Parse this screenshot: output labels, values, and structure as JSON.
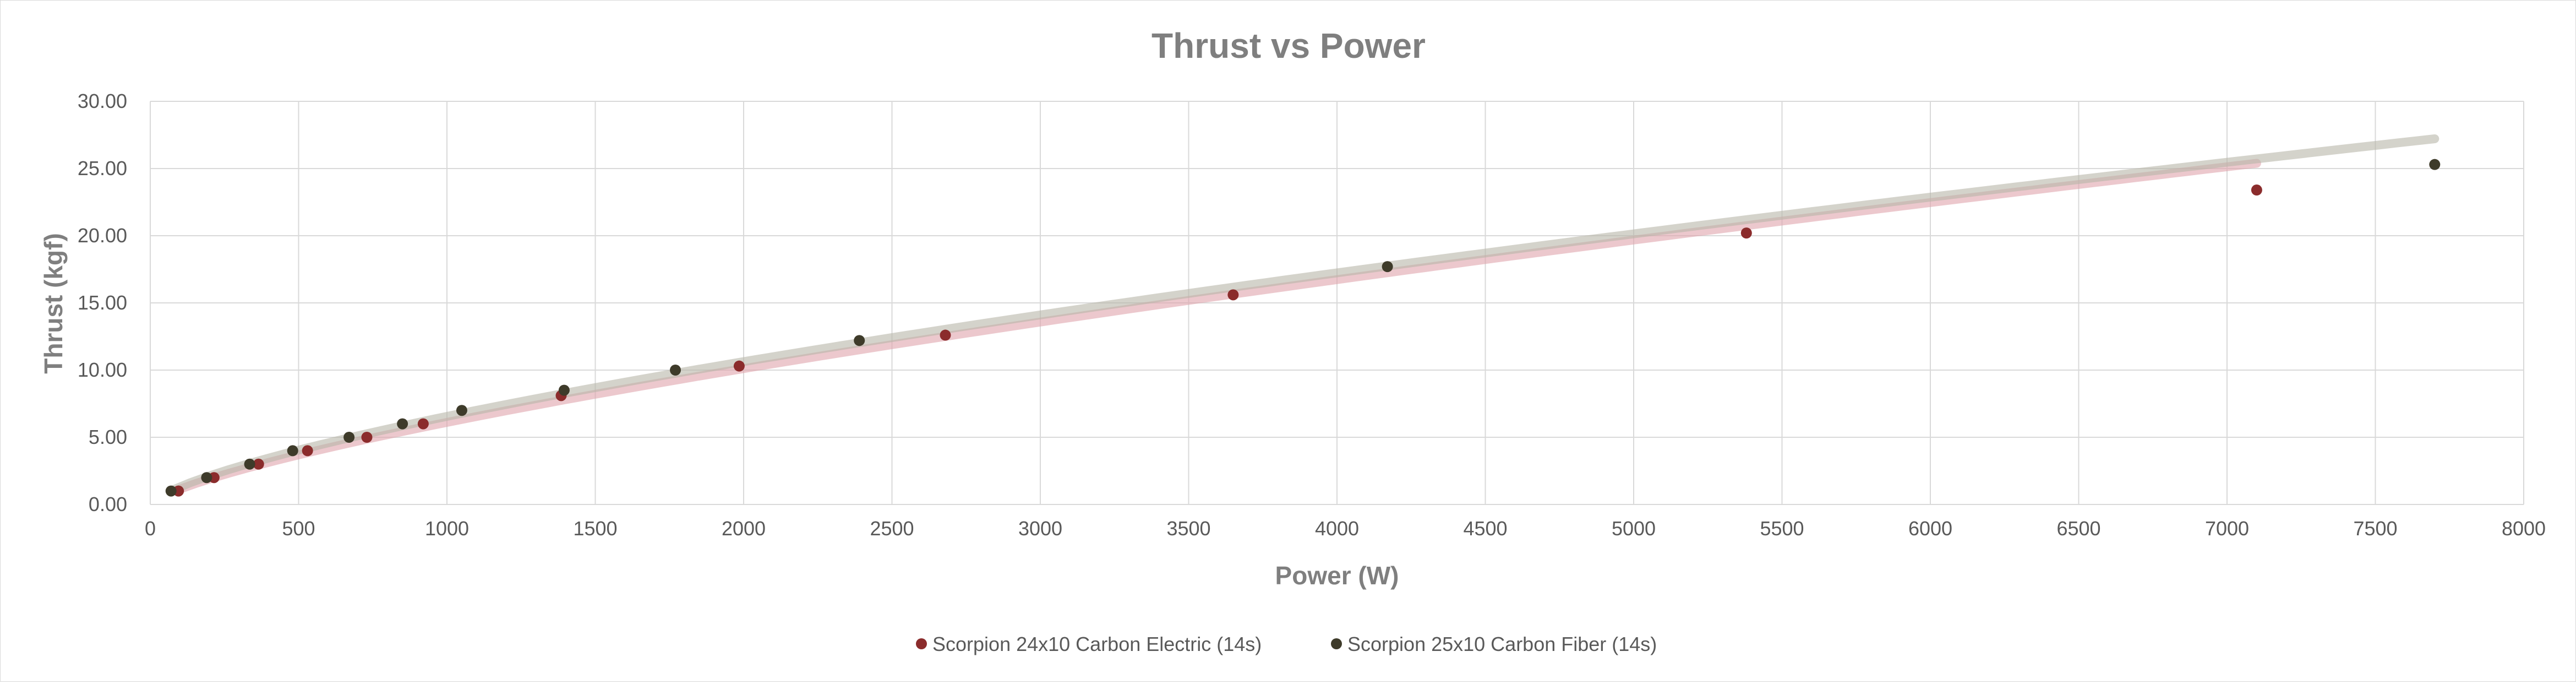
{
  "chart_data": {
    "type": "scatter",
    "title": "Thrust vs Power",
    "xlabel": "Power (W)",
    "ylabel": "Thrust (kgf)",
    "xlim": [
      0,
      8000
    ],
    "ylim": [
      0,
      30
    ],
    "x_ticks": [
      "0",
      "500",
      "1000",
      "1500",
      "2000",
      "2500",
      "3000",
      "3500",
      "4000",
      "4500",
      "5000",
      "5500",
      "6000",
      "6500",
      "7000",
      "7500",
      "8000"
    ],
    "y_ticks": [
      "0.00",
      "5.00",
      "10.00",
      "15.00",
      "20.00",
      "25.00",
      "30.00"
    ],
    "grid": true,
    "legend_position": "bottom",
    "series": [
      {
        "name": "Scorpion 24x10 Carbon Electric (14s)",
        "color": "#8b2c2c",
        "trend_color": "#e0a3ab",
        "x": [
          95,
          215,
          365,
          530,
          730,
          920,
          1385,
          1985,
          2680,
          3650,
          5380,
          7100
        ],
        "y": [
          1.0,
          2.0,
          3.0,
          4.0,
          5.0,
          6.0,
          8.1,
          10.3,
          12.6,
          15.6,
          20.2,
          23.4
        ]
      },
      {
        "name": "Scorpion 25x10 Carbon Fiber (14s)",
        "color": "#3e3b2a",
        "trend_color": "#b8b5a8",
        "x": [
          70,
          190,
          335,
          480,
          670,
          850,
          1050,
          1395,
          1770,
          2390,
          4170,
          7700
        ],
        "y": [
          1.0,
          2.0,
          3.0,
          4.0,
          5.0,
          6.0,
          7.0,
          8.5,
          10.0,
          12.2,
          17.7,
          25.3
        ]
      }
    ]
  }
}
